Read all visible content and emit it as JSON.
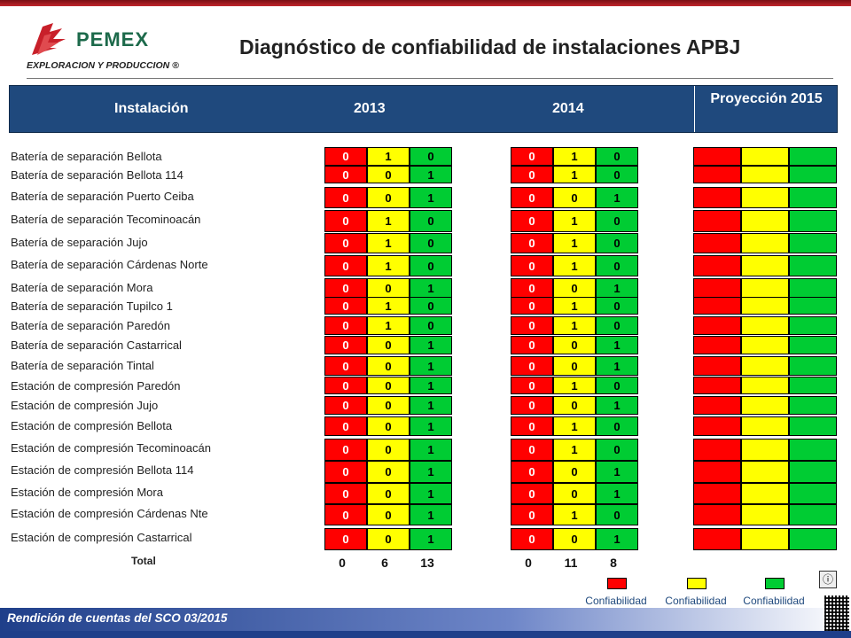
{
  "header": {
    "title": "Diagnóstico de confiabilidad de instalaciones APBJ",
    "logo_brand": "PEMEX",
    "logo_subtitle": "EXPLORACION Y PRODUCCION ®"
  },
  "table": {
    "col_installation": "Instalación",
    "col_2013": "2013",
    "col_2014": "2014",
    "col_projection": "Proyección 2015",
    "rows": [
      {
        "name": "Batería de separación Bellota",
        "y2013": [
          "0",
          "1",
          "0"
        ],
        "y2014": [
          "0",
          "1",
          "0"
        ]
      },
      {
        "name": "Batería de separación Bellota 114",
        "y2013": [
          "0",
          "0",
          "1"
        ],
        "y2014": [
          "0",
          "1",
          "0"
        ]
      },
      {
        "name": "Batería de separación Puerto Ceiba",
        "y2013": [
          "0",
          "0",
          "1"
        ],
        "y2014": [
          "0",
          "0",
          "1"
        ]
      },
      {
        "name": "Batería de separación Tecominoacán",
        "y2013": [
          "0",
          "1",
          "0"
        ],
        "y2014": [
          "0",
          "1",
          "0"
        ]
      },
      {
        "name": "Batería de separación Jujo",
        "y2013": [
          "0",
          "1",
          "0"
        ],
        "y2014": [
          "0",
          "1",
          "0"
        ]
      },
      {
        "name": "Batería de separación Cárdenas Norte",
        "y2013": [
          "0",
          "1",
          "0"
        ],
        "y2014": [
          "0",
          "1",
          "0"
        ]
      },
      {
        "name": "Batería de separación Mora",
        "y2013": [
          "0",
          "0",
          "1"
        ],
        "y2014": [
          "0",
          "0",
          "1"
        ]
      },
      {
        "name": "Batería de separación Tupilco 1",
        "y2013": [
          "0",
          "1",
          "0"
        ],
        "y2014": [
          "0",
          "1",
          "0"
        ]
      },
      {
        "name": "Batería de separación Paredón",
        "y2013": [
          "0",
          "1",
          "0"
        ],
        "y2014": [
          "0",
          "1",
          "0"
        ]
      },
      {
        "name": "Batería de separación Castarrical",
        "y2013": [
          "0",
          "0",
          "1"
        ],
        "y2014": [
          "0",
          "0",
          "1"
        ]
      },
      {
        "name": "Batería de separación Tintal",
        "y2013": [
          "0",
          "0",
          "1"
        ],
        "y2014": [
          "0",
          "0",
          "1"
        ]
      },
      {
        "name": "Estación de compresión Paredón",
        "y2013": [
          "0",
          "0",
          "1"
        ],
        "y2014": [
          "0",
          "1",
          "0"
        ]
      },
      {
        "name": "Estación de compresión Jujo",
        "y2013": [
          "0",
          "0",
          "1"
        ],
        "y2014": [
          "0",
          "0",
          "1"
        ]
      },
      {
        "name": "Estación de compresión Bellota",
        "y2013": [
          "0",
          "0",
          "1"
        ],
        "y2014": [
          "0",
          "1",
          "0"
        ]
      },
      {
        "name": "Estación de compresión Tecominoacán",
        "y2013": [
          "0",
          "0",
          "1"
        ],
        "y2014": [
          "0",
          "1",
          "0"
        ]
      },
      {
        "name": "Estación de compresión Bellota 114",
        "y2013": [
          "0",
          "0",
          "1"
        ],
        "y2014": [
          "0",
          "0",
          "1"
        ]
      },
      {
        "name": "Estación de compresión Mora",
        "y2013": [
          "0",
          "0",
          "1"
        ],
        "y2014": [
          "0",
          "0",
          "1"
        ]
      },
      {
        "name": "Estación de compresión Cárdenas Nte",
        "y2013": [
          "0",
          "0",
          "1"
        ],
        "y2014": [
          "0",
          "1",
          "0"
        ]
      },
      {
        "name": "Estación de compresión Castarrical",
        "y2013": [
          "0",
          "0",
          "1"
        ],
        "y2014": [
          "0",
          "0",
          "1"
        ]
      }
    ],
    "total_label": "Total",
    "totals_2013": [
      "0",
      "6",
      "13"
    ],
    "totals_2014": [
      "0",
      "11",
      "8"
    ]
  },
  "legend": {
    "red": "Confiabilidad No aceptable",
    "yellow": "Confiabilidad Disminuida",
    "green": "Confiabilidad Aceptable"
  },
  "colors": {
    "red": "#ff0000",
    "yellow": "#ffff00",
    "green": "#00cc33",
    "header": "#1f497d"
  },
  "icons": {
    "info": "info-icon",
    "qr": "qr-code-icon"
  },
  "footer": {
    "text": "Rendición de cuentas del SCO 03/2015"
  }
}
